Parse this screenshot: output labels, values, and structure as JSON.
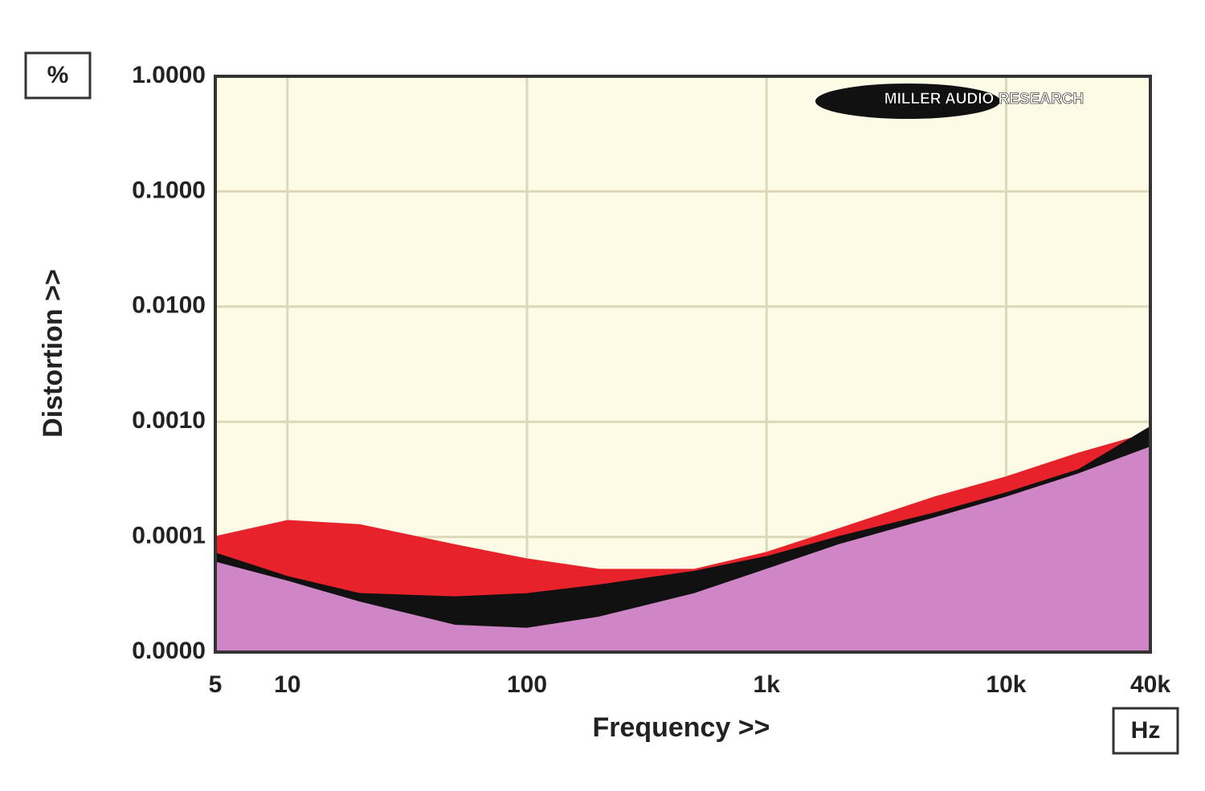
{
  "chart_data": {
    "type": "area",
    "unit_label": "%",
    "x_unit_label": "Hz",
    "ylabel": "Distortion >>",
    "xlabel": "Frequency >>",
    "logo": "MILLER AUDIO RESEARCH",
    "xscale": "log",
    "yscale": "log",
    "grid": true,
    "x": [
      5,
      10,
      20,
      50,
      100,
      200,
      500,
      1000,
      2000,
      5000,
      10000,
      20000,
      40000
    ],
    "series": [
      {
        "color": "#e8222a",
        "values": [
          0.0001,
          0.000138,
          0.000127,
          8.5e-05,
          6.4e-05,
          5.2e-05,
          5.2e-05,
          7.3e-05,
          0.000117,
          0.00022,
          0.00033,
          0.00053,
          0.0008
        ]
      },
      {
        "color": "#111111",
        "values": [
          7.2e-05,
          4.5e-05,
          3.2e-05,
          3e-05,
          3.2e-05,
          3.8e-05,
          5e-05,
          6.7e-05,
          0.0001,
          0.00016,
          0.00024,
          0.00038,
          0.0009
        ]
      },
      {
        "color": "#cf86c6",
        "values": [
          6e-05,
          4.1e-05,
          2.7e-05,
          1.7e-05,
          1.6e-05,
          2e-05,
          3.2e-05,
          5.2e-05,
          8.5e-05,
          0.000145,
          0.00022,
          0.00035,
          0.0006
        ]
      }
    ],
    "xlim": [
      5,
      40000
    ],
    "ylim": [
      1e-05,
      1
    ],
    "xticks": [
      5,
      10,
      100,
      {
        "value": 1000,
        "label": "1k"
      },
      {
        "value": 10000,
        "label": "10k"
      },
      {
        "value": 40000,
        "label": "40k"
      }
    ],
    "yticks": [
      {
        "value": 1,
        "label": "1.0000"
      },
      {
        "value": 0.1,
        "label": "0.1000"
      },
      {
        "value": 0.01,
        "label": "0.0100"
      },
      {
        "value": 0.001,
        "label": "0.0010"
      },
      {
        "value": 0.0001,
        "label": "0.0001"
      },
      {
        "value": 1e-05,
        "label": "0.0000"
      }
    ]
  }
}
